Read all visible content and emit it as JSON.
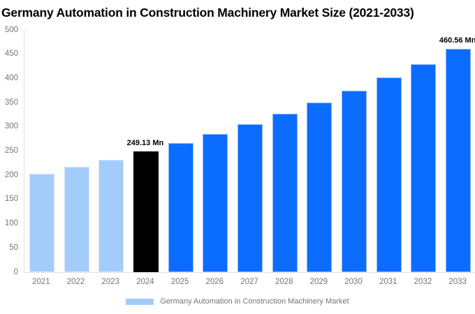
{
  "title": "Germany Automation in Construction Machinery Market Size (2021-2033)",
  "chart_data": {
    "type": "bar",
    "title": "Germany Automation in Construction Machinery Market Size (2021-2033)",
    "categories": [
      "2021",
      "2022",
      "2023",
      "2024",
      "2025",
      "2026",
      "2027",
      "2028",
      "2029",
      "2030",
      "2031",
      "2032",
      "2033"
    ],
    "values": [
      202.99,
      217.33,
      232.69,
      249.13,
      266.73,
      285.58,
      305.76,
      327.37,
      350.5,
      375.27,
      401.79,
      430.18,
      460.56
    ],
    "unit": "Mn",
    "xlabel": "",
    "ylabel": "",
    "ylim": [
      0,
      500
    ],
    "y_ticks": [
      0,
      50,
      100,
      150,
      200,
      250,
      300,
      350,
      400,
      450,
      500
    ],
    "grid": false,
    "legend_position": "bottom",
    "bar_roles": [
      "historical",
      "historical",
      "historical",
      "current",
      "forecast",
      "forecast",
      "forecast",
      "forecast",
      "forecast",
      "forecast",
      "forecast",
      "forecast",
      "forecast"
    ],
    "annotations": [
      {
        "category": "2024",
        "text": "249.13 Mn"
      },
      {
        "category": "2033",
        "text": "460.56 Mn"
      }
    ]
  },
  "colors": {
    "historical": "#a4ccfa",
    "historical_border": "#d8e9fc",
    "current": "#000000",
    "current_border": "#000000",
    "forecast": "#0a6dff",
    "forecast_border": "#8db7f8",
    "axis_line": "#e2e2e2",
    "tick_text": "#757575"
  },
  "legend": {
    "label": "Germany Automation in Construction Machinery Market",
    "swatch_color": "#a4ccfa"
  }
}
